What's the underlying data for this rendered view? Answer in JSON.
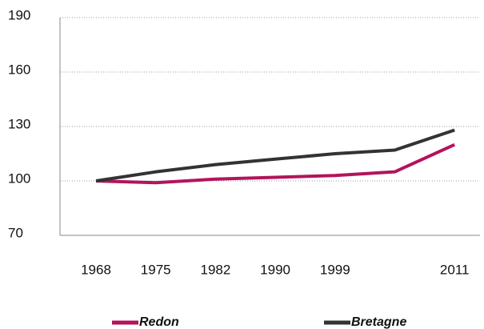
{
  "chart_data": {
    "type": "line",
    "categories": [
      "1968",
      "1975",
      "1982",
      "1990",
      "1999",
      null,
      "2011"
    ],
    "series": [
      {
        "name": "Redon",
        "color": "#b3145c",
        "values": [
          100,
          99,
          101,
          102,
          103,
          105,
          120
        ]
      },
      {
        "name": "Bretagne",
        "color": "#333333",
        "values": [
          100,
          105,
          109,
          112,
          115,
          117,
          128
        ]
      }
    ],
    "ylim": [
      70,
      190
    ],
    "yticks": [
      70,
      100,
      130,
      160,
      190
    ],
    "grid": true
  }
}
